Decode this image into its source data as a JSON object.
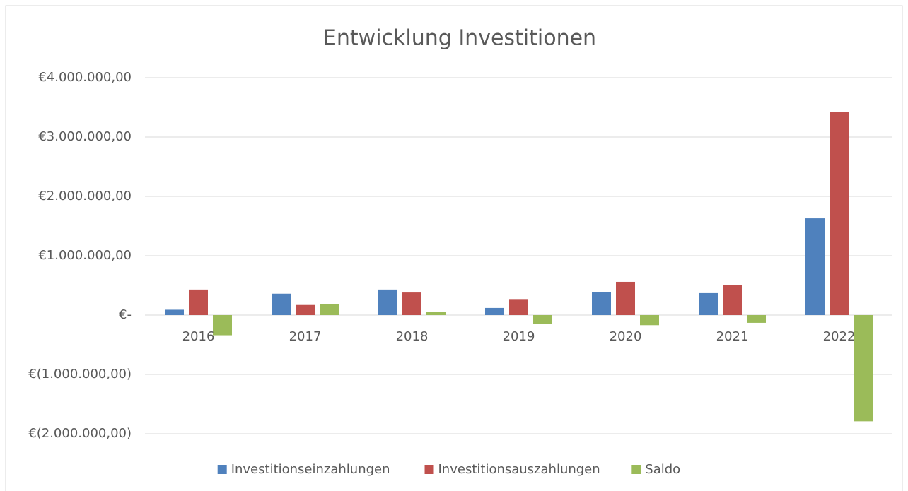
{
  "chart_data": {
    "type": "bar",
    "title": "Entwicklung Investitionen",
    "categories": [
      "2016",
      "2017",
      "2018",
      "2019",
      "2020",
      "2021",
      "2022"
    ],
    "series": [
      {
        "name": "Investitionseinzahlungen",
        "color": "#4f81bd",
        "values": [
          90000,
          360000,
          430000,
          120000,
          390000,
          370000,
          1630000
        ]
      },
      {
        "name": "Investitionsauszahlungen",
        "color": "#c0504d",
        "values": [
          430000,
          170000,
          380000,
          270000,
          560000,
          500000,
          3420000
        ]
      },
      {
        "name": "Saldo",
        "color": "#9bbb59",
        "values": [
          -340000,
          190000,
          50000,
          -150000,
          -170000,
          -130000,
          -1790000
        ]
      }
    ],
    "ylim": [
      -2000000,
      4000000
    ],
    "yticks": [
      {
        "value": -2000000,
        "label": "€(2.000.000,00)"
      },
      {
        "value": -1000000,
        "label": "€(1.000.000,00)"
      },
      {
        "value": 0,
        "label": "€-"
      },
      {
        "value": 1000000,
        "label": "€1.000.000,00"
      },
      {
        "value": 2000000,
        "label": "€2.000.000,00"
      },
      {
        "value": 3000000,
        "label": "€3.000.000,00"
      },
      {
        "value": 4000000,
        "label": "€4.000.000,00"
      }
    ],
    "grid": true,
    "legend": "bottom"
  }
}
